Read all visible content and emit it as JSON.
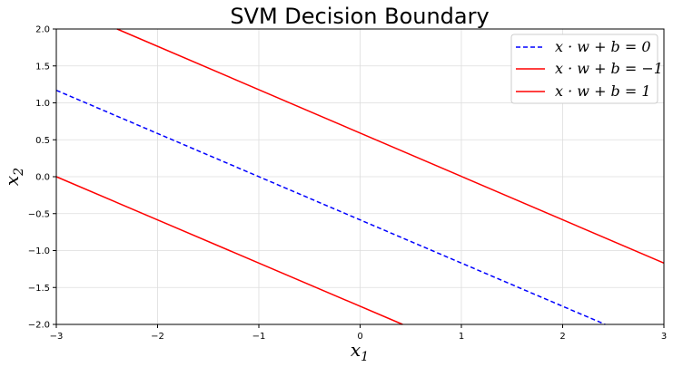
{
  "chart_data": {
    "type": "line",
    "title": "SVM Decision Boundary",
    "xlabel": "x",
    "xlabel_sub": "1",
    "ylabel": "x",
    "ylabel_sub": "2",
    "xlim": [
      -3,
      3
    ],
    "ylim": [
      -2,
      2
    ],
    "x_ticks": [
      -3,
      -2,
      -1,
      0,
      1,
      2,
      3
    ],
    "x_tick_labels": [
      "−3",
      "−2",
      "−1",
      "0",
      "1",
      "2",
      "3"
    ],
    "y_ticks": [
      -2.0,
      -1.5,
      -1.0,
      -0.5,
      0.0,
      0.5,
      1.0,
      1.5,
      2.0
    ],
    "y_tick_labels": [
      "−2.0",
      "−1.5",
      "−1.0",
      "−0.5",
      "0.0",
      "0.5",
      "1.0",
      "1.5",
      "2.0"
    ],
    "grid": true,
    "legend_position": "top-right",
    "series": [
      {
        "name": "x · w + b = 0",
        "color": "#0000ff",
        "style": "dashed",
        "x": [
          -3,
          2.42
        ],
        "y": [
          1.17,
          -2.0
        ]
      },
      {
        "name": "x · w + b = −1",
        "color": "#ff0000",
        "style": "solid",
        "x": [
          -2.4,
          3
        ],
        "y": [
          2.0,
          -1.17
        ]
      },
      {
        "name": "x · w + b = 1",
        "color": "#ff0000",
        "style": "solid",
        "x": [
          -3,
          0.42
        ],
        "y": [
          0.0,
          -2.0
        ]
      }
    ]
  }
}
